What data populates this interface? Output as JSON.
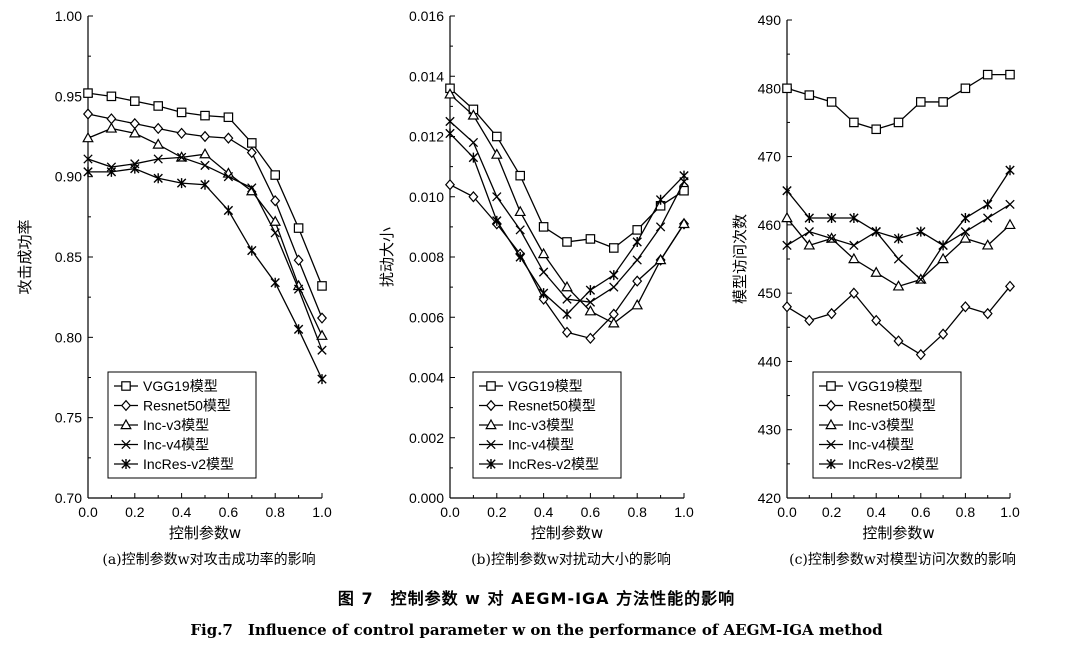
{
  "figure": {
    "caption_zh": "图 7　控制参数 w 对 AEGM-IGA 方法性能的影响",
    "caption_en": "Fig.7　Influence of control parameter w on the performance of AEGM-IGA method"
  },
  "legend_labels": [
    "VGG19模型",
    "Resnet50模型",
    "Inc-v3模型",
    "Inc-v4模型",
    "IncRes-v2模型"
  ],
  "marker_icons": [
    "square-icon",
    "diamond-icon",
    "triangle-icon",
    "x-icon",
    "asterisk-icon"
  ],
  "chart_data": [
    {
      "type": "line",
      "subcaption": "(a)控制参数w对攻击成功率的影响",
      "xlabel": "控制参数w",
      "ylabel": "攻击成功率",
      "xlim": [
        0,
        1
      ],
      "ylim": [
        0.7,
        1.0
      ],
      "xticks": [
        "0.0",
        "0.2",
        "0.4",
        "0.6",
        "0.8",
        "1.0"
      ],
      "yticks": [
        "0.70",
        "0.75",
        "0.80",
        "0.85",
        "0.90",
        "0.95",
        "1.00"
      ],
      "legend_position": "bottom-left",
      "x": [
        0.0,
        0.1,
        0.2,
        0.3,
        0.4,
        0.5,
        0.6,
        0.7,
        0.8,
        0.9,
        1.0
      ],
      "series": [
        {
          "name": "VGG19模型",
          "marker": "square",
          "values": [
            0.952,
            0.95,
            0.947,
            0.944,
            0.94,
            0.938,
            0.937,
            0.921,
            0.901,
            0.868,
            0.832
          ]
        },
        {
          "name": "Resnet50模型",
          "marker": "diamond",
          "values": [
            0.939,
            0.936,
            0.933,
            0.93,
            0.927,
            0.925,
            0.924,
            0.915,
            0.885,
            0.848,
            0.812
          ]
        },
        {
          "name": "Inc-v3模型",
          "marker": "triangle",
          "values": [
            0.924,
            0.93,
            0.927,
            0.92,
            0.912,
            0.914,
            0.902,
            0.891,
            0.872,
            0.832,
            0.801
          ]
        },
        {
          "name": "Inc-v4模型",
          "marker": "x",
          "values": [
            0.911,
            0.906,
            0.908,
            0.911,
            0.912,
            0.907,
            0.9,
            0.893,
            0.865,
            0.83,
            0.792
          ]
        },
        {
          "name": "IncRes-v2模型",
          "marker": "asterisk",
          "values": [
            0.903,
            0.903,
            0.905,
            0.899,
            0.896,
            0.895,
            0.879,
            0.854,
            0.834,
            0.805,
            0.774
          ]
        }
      ]
    },
    {
      "type": "line",
      "subcaption": "(b)控制参数w对扰动大小的影响",
      "xlabel": "控制参数w",
      "ylabel": "扰动大小",
      "xlim": [
        0,
        1
      ],
      "ylim": [
        0.0,
        0.016
      ],
      "xticks": [
        "0.0",
        "0.2",
        "0.4",
        "0.6",
        "0.8",
        "1.0"
      ],
      "yticks": [
        "0.000",
        "0.002",
        "0.004",
        "0.006",
        "0.008",
        "0.010",
        "0.012",
        "0.014",
        "0.016"
      ],
      "legend_position": "bottom-left",
      "x": [
        0.0,
        0.1,
        0.2,
        0.3,
        0.4,
        0.5,
        0.6,
        0.7,
        0.8,
        0.9,
        1.0
      ],
      "series": [
        {
          "name": "VGG19模型",
          "marker": "square",
          "values": [
            0.0136,
            0.0129,
            0.012,
            0.0107,
            0.009,
            0.0085,
            0.0086,
            0.0083,
            0.0089,
            0.0097,
            0.0102
          ]
        },
        {
          "name": "Resnet50模型",
          "marker": "diamond",
          "values": [
            0.0104,
            0.01,
            0.0091,
            0.0081,
            0.0066,
            0.0055,
            0.0053,
            0.0061,
            0.0072,
            0.0079,
            0.0091
          ]
        },
        {
          "name": "Inc-v3模型",
          "marker": "triangle",
          "values": [
            0.0134,
            0.0127,
            0.0114,
            0.0095,
            0.0081,
            0.007,
            0.0062,
            0.0058,
            0.0064,
            0.0079,
            0.0091
          ]
        },
        {
          "name": "Inc-v4模型",
          "marker": "x",
          "values": [
            0.0125,
            0.0118,
            0.01,
            0.0089,
            0.0075,
            0.0066,
            0.0065,
            0.007,
            0.0079,
            0.009,
            0.0105
          ]
        },
        {
          "name": "IncRes-v2模型",
          "marker": "asterisk",
          "values": [
            0.0121,
            0.0113,
            0.0092,
            0.008,
            0.0068,
            0.0061,
            0.0069,
            0.0074,
            0.0085,
            0.0099,
            0.0107
          ]
        }
      ]
    },
    {
      "type": "line",
      "subcaption": "(c)控制参数w对模型访问次数的影响",
      "xlabel": "控制参数w",
      "ylabel": "模型访问次数",
      "xlim": [
        0,
        1
      ],
      "ylim": [
        420,
        490
      ],
      "xticks": [
        "0.0",
        "0.2",
        "0.4",
        "0.6",
        "0.8",
        "1.0"
      ],
      "yticks": [
        "420",
        "430",
        "440",
        "450",
        "460",
        "470",
        "480",
        "490"
      ],
      "legend_position": "bottom-left",
      "x": [
        0.0,
        0.1,
        0.2,
        0.3,
        0.4,
        0.5,
        0.6,
        0.7,
        0.8,
        0.9,
        1.0
      ],
      "series": [
        {
          "name": "VGG19模型",
          "marker": "square",
          "values": [
            480,
            479,
            478,
            475,
            474,
            475,
            478,
            478,
            480,
            482,
            482
          ]
        },
        {
          "name": "Resnet50模型",
          "marker": "diamond",
          "values": [
            448,
            446,
            447,
            450,
            446,
            443,
            441,
            444,
            448,
            447,
            451
          ]
        },
        {
          "name": "Inc-v3模型",
          "marker": "triangle",
          "values": [
            461,
            457,
            458,
            455,
            453,
            451,
            452,
            455,
            458,
            457,
            460
          ]
        },
        {
          "name": "Inc-v4模型",
          "marker": "x",
          "values": [
            457,
            459,
            458,
            457,
            459,
            455,
            452,
            457,
            459,
            461,
            463
          ]
        },
        {
          "name": "IncRes-v2模型",
          "marker": "asterisk",
          "values": [
            465,
            461,
            461,
            461,
            459,
            458,
            459,
            457,
            461,
            463,
            468
          ]
        }
      ]
    }
  ]
}
